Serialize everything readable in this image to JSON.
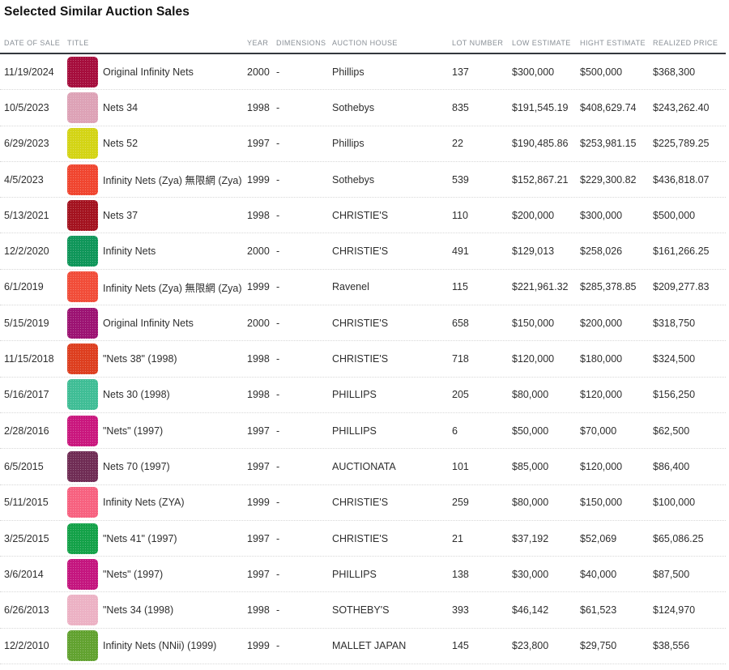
{
  "page": {
    "title": "Selected Similar Auction Sales"
  },
  "table": {
    "columns": [
      "DATE OF SALE",
      "TITLE",
      "YEAR",
      "DIMENSIONS",
      "AUCTION HOUSE",
      "LOT NUMBER",
      "LOW ESTIMATE",
      "HIGHT ESTIMATE",
      "REALIZED PRICE"
    ],
    "rows": [
      {
        "date": "11/19/2024",
        "thumb_color": "#A50D3C",
        "title": "Original Infinity Nets",
        "year": "2000",
        "dimensions": "-",
        "auction_house": "Phillips",
        "lot_number": "137",
        "low_estimate": "$300,000",
        "high_estimate": "$500,000",
        "realized_price": "$368,300"
      },
      {
        "date": "10/5/2023",
        "thumb_color": "#DDA2B6",
        "title": "Nets 34",
        "year": "1998",
        "dimensions": "-",
        "auction_house": "Sothebys",
        "lot_number": "835",
        "low_estimate": "$191,545.19",
        "high_estimate": "$408,629.74",
        "realized_price": "$243,262.40"
      },
      {
        "date": "6/29/2023",
        "thumb_color": "#D3D414",
        "title": "Nets 52",
        "year": "1997",
        "dimensions": "-",
        "auction_house": "Phillips",
        "lot_number": "22",
        "low_estimate": "$190,485.86",
        "high_estimate": "$253,981.15",
        "realized_price": "$225,789.25"
      },
      {
        "date": "4/5/2023",
        "thumb_color": "#F0452F",
        "title": "Infinity Nets (Zya) 無限網 (Zya)",
        "year": "1999",
        "dimensions": "-",
        "auction_house": "Sothebys",
        "lot_number": "539",
        "low_estimate": "$152,867.21",
        "high_estimate": "$229,300.82",
        "realized_price": "$436,818.07"
      },
      {
        "date": "5/13/2021",
        "thumb_color": "#A3121F",
        "title": "Nets 37",
        "year": "1998",
        "dimensions": "-",
        "auction_house": "CHRISTIE'S",
        "lot_number": "110",
        "low_estimate": "$200,000",
        "high_estimate": "$300,000",
        "realized_price": "$500,000"
      },
      {
        "date": "12/2/2020",
        "thumb_color": "#0E9659",
        "title": "Infinity Nets",
        "year": "2000",
        "dimensions": "-",
        "auction_house": "CHRISTIE'S",
        "lot_number": "491",
        "low_estimate": "$129,013",
        "high_estimate": "$258,026",
        "realized_price": "$161,266.25"
      },
      {
        "date": "6/1/2019",
        "thumb_color": "#F14C38",
        "title": "Infinity Nets (Zya) 無限網 (Zya)",
        "year": "1999",
        "dimensions": "-",
        "auction_house": "Ravenel",
        "lot_number": "115",
        "low_estimate": "$221,961.32",
        "high_estimate": "$285,378.85",
        "realized_price": "$209,277.83"
      },
      {
        "date": "5/15/2019",
        "thumb_color": "#9C1272",
        "title": "Original Infinity Nets",
        "year": "2000",
        "dimensions": "-",
        "auction_house": "CHRISTIE'S",
        "lot_number": "658",
        "low_estimate": "$150,000",
        "high_estimate": "$200,000",
        "realized_price": "$318,750"
      },
      {
        "date": "11/15/2018",
        "thumb_color": "#DD3E1E",
        "title": "\"Nets 38\" (1998)",
        "year": "1998",
        "dimensions": "-",
        "auction_house": "CHRISTIE'S",
        "lot_number": "718",
        "low_estimate": "$120,000",
        "high_estimate": "$180,000",
        "realized_price": "$324,500"
      },
      {
        "date": "5/16/2017",
        "thumb_color": "#3FBD95",
        "title": "Nets 30 (1998)",
        "year": "1998",
        "dimensions": "-",
        "auction_house": "PHILLIPS",
        "lot_number": "205",
        "low_estimate": "$80,000",
        "high_estimate": "$120,000",
        "realized_price": "$156,250"
      },
      {
        "date": "2/28/2016",
        "thumb_color": "#C9167D",
        "title": "\"Nets\" (1997)",
        "year": "1997",
        "dimensions": "-",
        "auction_house": "PHILLIPS",
        "lot_number": "6",
        "low_estimate": "$50,000",
        "high_estimate": "$70,000",
        "realized_price": "$62,500"
      },
      {
        "date": "6/5/2015",
        "thumb_color": "#6F2C54",
        "title": "Nets 70 (1997)",
        "year": "1997",
        "dimensions": "-",
        "auction_house": "AUCTIONATA",
        "lot_number": "101",
        "low_estimate": "$85,000",
        "high_estimate": "$120,000",
        "realized_price": "$86,400"
      },
      {
        "date": "5/11/2015",
        "thumb_color": "#F7617F",
        "title": "Infinity Nets (ZYA)",
        "year": "1999",
        "dimensions": "-",
        "auction_house": "CHRISTIE'S",
        "lot_number": "259",
        "low_estimate": "$80,000",
        "high_estimate": "$150,000",
        "realized_price": "$100,000"
      },
      {
        "date": "3/25/2015",
        "thumb_color": "#13A148",
        "title": "\"Nets 41\" (1997)",
        "year": "1997",
        "dimensions": "-",
        "auction_house": "CHRISTIE'S",
        "lot_number": "21",
        "low_estimate": "$37,192",
        "high_estimate": "$52,069",
        "realized_price": "$65,086.25"
      },
      {
        "date": "3/6/2014",
        "thumb_color": "#C4157E",
        "title": "\"Nets\" (1997)",
        "year": "1997",
        "dimensions": "-",
        "auction_house": "PHILLIPS",
        "lot_number": "138",
        "low_estimate": "$30,000",
        "high_estimate": "$40,000",
        "realized_price": "$87,500"
      },
      {
        "date": "6/26/2013",
        "thumb_color": "#ECB1C4",
        "title": "\"Nets 34 (1998)",
        "year": "1998",
        "dimensions": "-",
        "auction_house": "SOTHEBY'S",
        "lot_number": "393",
        "low_estimate": "$46,142",
        "high_estimate": "$61,523",
        "realized_price": "$124,970"
      },
      {
        "date": "12/2/2010",
        "thumb_color": "#61A22F",
        "title": "Infinity Nets (NNii) (1999)",
        "year": "1999",
        "dimensions": "-",
        "auction_house": "MALLET JAPAN",
        "lot_number": "145",
        "low_estimate": "$23,800",
        "high_estimate": "$29,750",
        "realized_price": "$38,556"
      }
    ]
  }
}
